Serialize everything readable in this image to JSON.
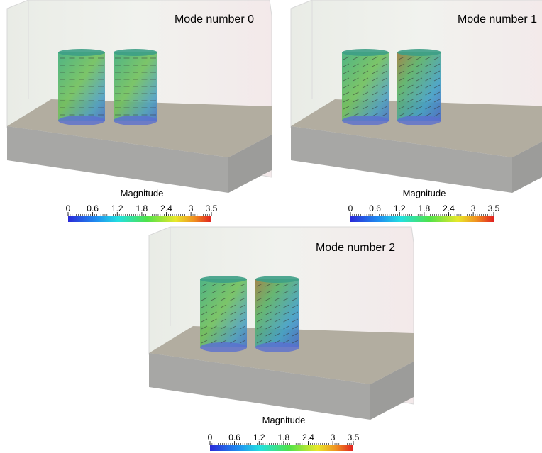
{
  "panels": [
    {
      "title": "Mode number 0",
      "colorbar": {
        "label": "Magnitude",
        "ticks": [
          0,
          0.6,
          1.2,
          1.8,
          2.4,
          3,
          3.5
        ]
      }
    },
    {
      "title": "Mode number 1",
      "colorbar": {
        "label": "Magnitude",
        "ticks": [
          0,
          0.6,
          1.2,
          1.8,
          2.4,
          3,
          3.5
        ]
      }
    },
    {
      "title": "Mode number 2",
      "colorbar": {
        "label": "Magnitude",
        "ticks": [
          0,
          0.6,
          1.2,
          1.8,
          2.4,
          3,
          3.5
        ]
      }
    }
  ]
}
